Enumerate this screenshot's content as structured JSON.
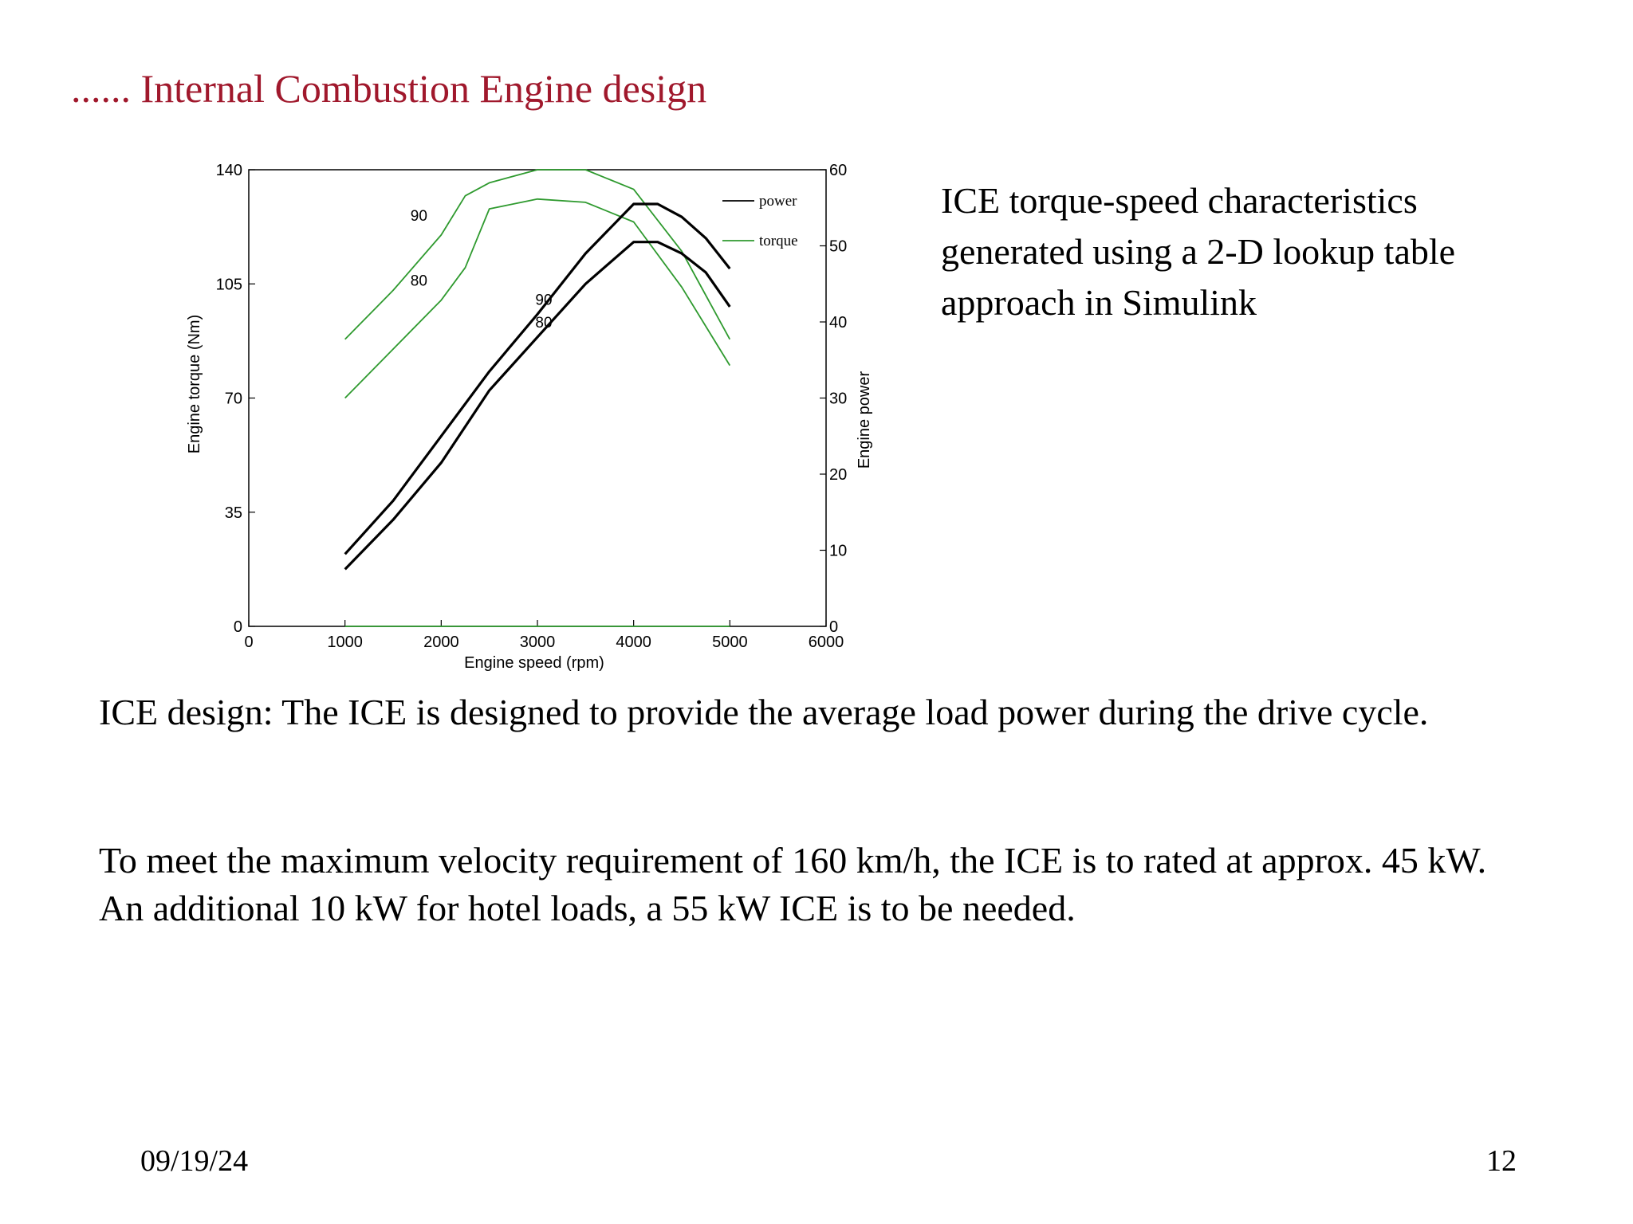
{
  "slide": {
    "title": "...... Internal Combustion Engine design",
    "side_note": [
      "ICE  torque-speed characteristics",
      "generated  using a 2-D lookup table",
      "approach in Simulink"
    ],
    "paragraph1": "ICE design: The ICE is designed to provide the average load power during the drive cycle.",
    "paragraph2": "To meet the maximum velocity requirement of 160 km/h, the ICE is to rated at approx. 45 kW. An additional 10 kW for hotel loads, a 55 kW ICE is to be needed.",
    "footer_date": "09/19/24",
    "footer_page": "12"
  },
  "chart_data": {
    "type": "line",
    "xlabel": "Engine speed (rpm)",
    "ylabel_left": "Engine torque (Nm)",
    "ylabel_right": "Engine power",
    "xlim": [
      0,
      6000
    ],
    "ylim_left": [
      0,
      140
    ],
    "ylim_right": [
      0,
      60
    ],
    "x_ticks": [
      "0",
      "1000",
      "2000",
      "3000",
      "4000",
      "5000",
      "6000"
    ],
    "y_ticks_left": [
      "0",
      "35",
      "70",
      "105",
      "140"
    ],
    "y_ticks_right": [
      "0",
      "10",
      "20",
      "30",
      "40",
      "50",
      "60"
    ],
    "grid": false,
    "legend": {
      "position": "top-right",
      "entries": [
        {
          "label": "power",
          "color": "#000000"
        },
        {
          "label": "torque",
          "color": "#2f9a2f"
        }
      ]
    },
    "series": [
      {
        "name": "torque",
        "curve_label": "90",
        "axis": "left",
        "color": "#2f9a2f",
        "x": [
          1000,
          1500,
          2000,
          2250,
          2500,
          3000,
          3500,
          4000,
          4500,
          5000
        ],
        "y": [
          88,
          103,
          120,
          132,
          136,
          140,
          140,
          134,
          115,
          88
        ]
      },
      {
        "name": "torque",
        "curve_label": "80",
        "axis": "left",
        "color": "#2f9a2f",
        "x": [
          1000,
          1500,
          2000,
          2250,
          2500,
          3000,
          3500,
          4000,
          4500,
          5000
        ],
        "y": [
          70,
          85,
          100,
          110,
          128,
          131,
          130,
          124,
          104,
          80
        ]
      },
      {
        "name": "power",
        "curve_label": "90",
        "axis": "right",
        "color": "#000000",
        "x": [
          1000,
          1500,
          2000,
          2500,
          3000,
          3500,
          4000,
          4250,
          4500,
          4750,
          5000
        ],
        "y": [
          9.5,
          16.5,
          25,
          33.5,
          41,
          49,
          55.5,
          55.5,
          53.8,
          51,
          47
        ]
      },
      {
        "name": "power",
        "curve_label": "80",
        "axis": "right",
        "color": "#000000",
        "x": [
          1000,
          1500,
          2000,
          2500,
          3000,
          3500,
          4000,
          4250,
          4500,
          4750,
          5000
        ],
        "y": [
          7.5,
          14,
          21.5,
          31,
          38,
          45,
          50.5,
          50.5,
          49,
          46.5,
          42
        ]
      },
      {
        "name": "",
        "axis": "left",
        "color": "#2f9a2f",
        "x": [
          1000,
          5000
        ],
        "y": [
          0,
          0
        ]
      }
    ]
  }
}
